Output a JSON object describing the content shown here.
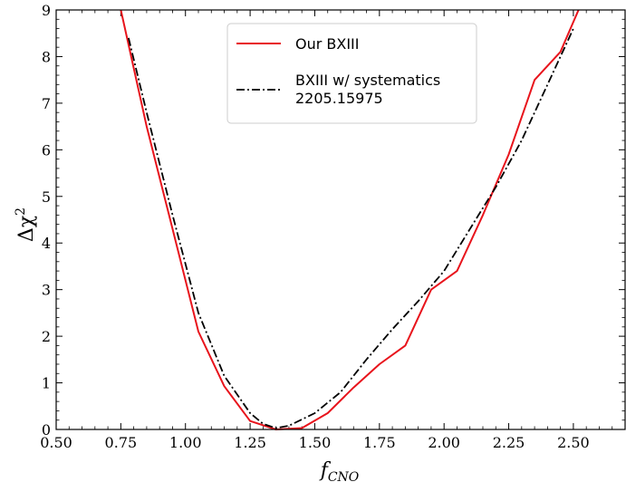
{
  "chart_data": {
    "type": "line",
    "xlabel": "f_CNO",
    "ylabel": "Δχ²",
    "xlim": [
      0.5,
      2.7
    ],
    "ylim": [
      0,
      9
    ],
    "x_ticks": [
      "0.50",
      "0.75",
      "1.00",
      "1.25",
      "1.50",
      "1.75",
      "2.00",
      "2.25",
      "2.50"
    ],
    "y_ticks": [
      "0",
      "1",
      "2",
      "3",
      "4",
      "5",
      "6",
      "7",
      "8",
      "9"
    ],
    "legend_position": "top-center",
    "series": [
      {
        "name": "Our BXIII",
        "color": "#e8141c",
        "style": "solid",
        "x": [
          0.75,
          0.85,
          0.95,
          1.05,
          1.15,
          1.25,
          1.35,
          1.45,
          1.55,
          1.65,
          1.75,
          1.85,
          1.95,
          2.05,
          2.15,
          2.25,
          2.35,
          2.45,
          2.52
        ],
        "y": [
          9.0,
          6.5,
          4.3,
          2.1,
          0.93,
          0.18,
          0.0,
          0.03,
          0.35,
          0.9,
          1.4,
          1.8,
          3.0,
          3.4,
          4.6,
          5.9,
          7.5,
          8.1,
          9.0
        ]
      },
      {
        "name": "BXIII w/ systematics\n2205.15975",
        "color": "#000000",
        "style": "dashdot",
        "x": [
          0.78,
          0.85,
          0.95,
          1.05,
          1.15,
          1.25,
          1.3,
          1.35,
          1.4,
          1.5,
          1.6,
          1.7,
          1.8,
          1.9,
          2.0,
          2.1,
          2.2,
          2.3,
          2.4,
          2.5
        ],
        "y": [
          8.4,
          6.8,
          4.6,
          2.5,
          1.15,
          0.35,
          0.12,
          0.03,
          0.08,
          0.35,
          0.8,
          1.5,
          2.15,
          2.75,
          3.4,
          4.3,
          5.2,
          6.2,
          7.4,
          8.6
        ]
      }
    ]
  }
}
